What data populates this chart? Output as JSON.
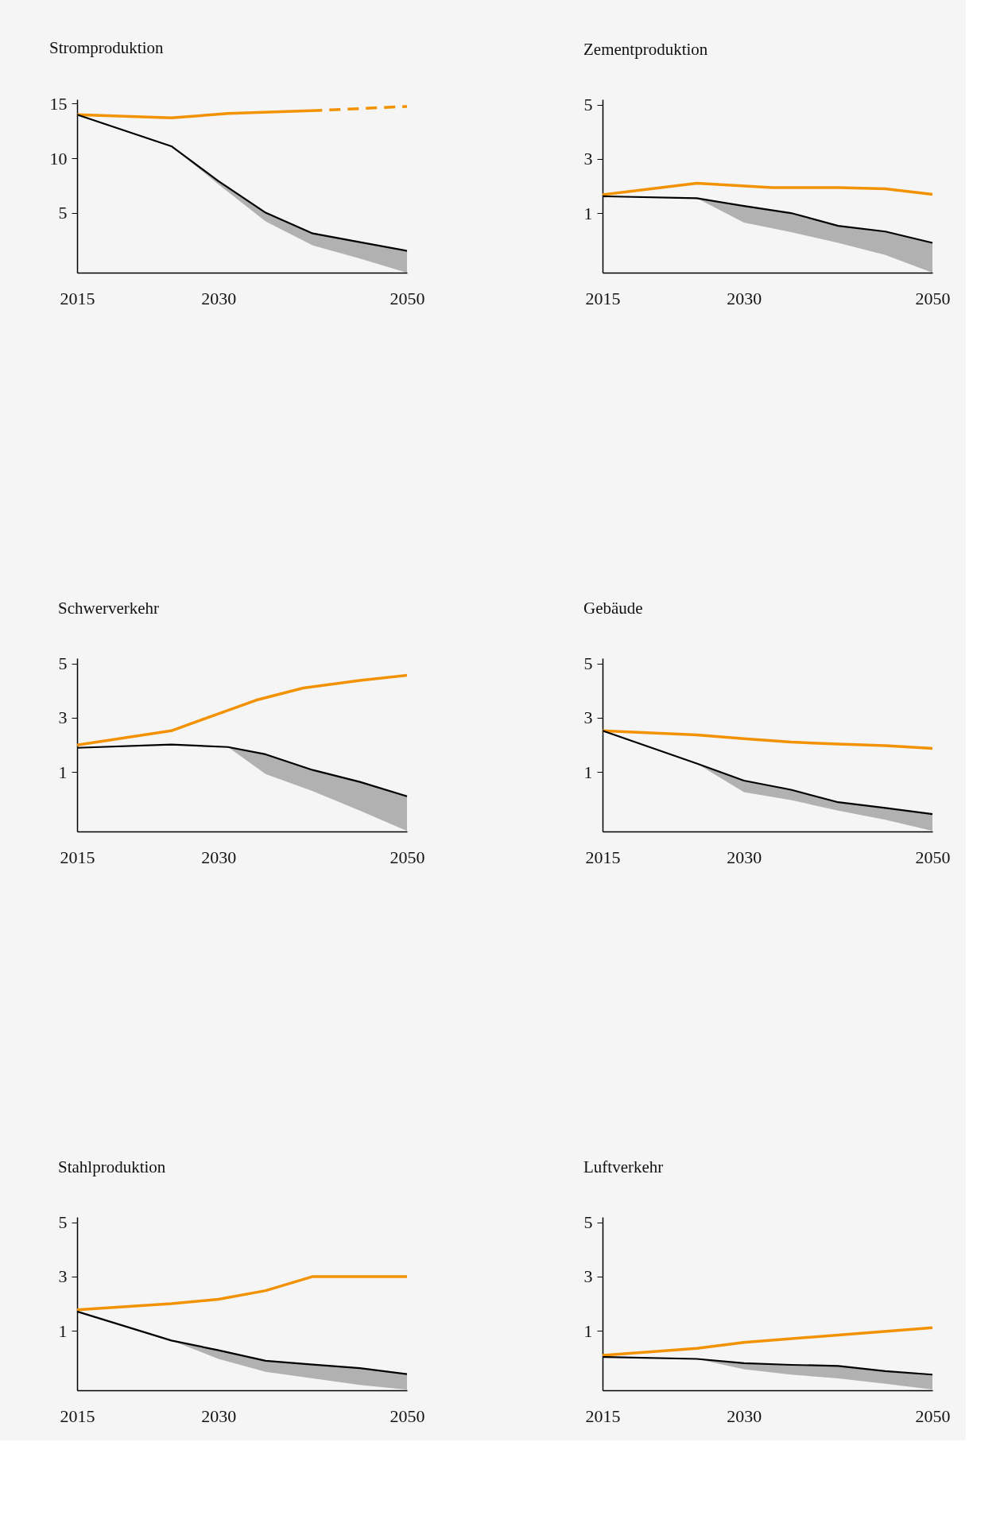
{
  "chart_data": [
    {
      "type": "line",
      "title": "Stromproduktion",
      "xlim": [
        2015,
        2050
      ],
      "xticks": [
        2015,
        2030,
        2050
      ],
      "ylim": [
        -0.5,
        15.4
      ],
      "yticks": [
        5,
        10,
        15
      ],
      "grid": false,
      "line_style": "solid",
      "series": [
        {
          "color": "#f39200",
          "x": [
            2015,
            2025,
            2031,
            2041
          ],
          "values": [
            14.0,
            13.7,
            14.1,
            14.4
          ]
        },
        {
          "color": "#f39200",
          "line_style": "dashed",
          "x": [
            2041,
            2050
          ],
          "values": [
            14.4,
            14.75
          ]
        },
        {
          "color": "#000000",
          "x": [
            2015,
            2025,
            2030,
            2035,
            2040,
            2045,
            2050
          ],
          "values": [
            14.0,
            11.1,
            7.9,
            5.0,
            3.1,
            2.3,
            1.5
          ],
          "lower": [
            null,
            11.1,
            7.6,
            4.2,
            2.0,
            0.8,
            -0.5
          ],
          "upper": [
            null,
            11.1,
            7.9,
            5.0,
            3.1,
            2.3,
            1.5
          ]
        }
      ]
    },
    {
      "type": "line",
      "title": "Zementproduktion",
      "xlim": [
        2015,
        2050
      ],
      "xticks": [
        2015,
        2030,
        2050
      ],
      "ylim": [
        -1.2,
        5.2
      ],
      "yticks": [
        1,
        3,
        5
      ],
      "grid": false,
      "line_style": "solid",
      "series": [
        {
          "color": "#f39200",
          "x": [
            2015,
            2025,
            2033,
            2040,
            2045,
            2050
          ],
          "values": [
            1.68,
            2.1,
            1.94,
            1.94,
            1.9,
            1.69
          ]
        },
        {
          "color": "#000000",
          "x": [
            2015,
            2025,
            2030,
            2035,
            2040,
            2045,
            2050
          ],
          "values": [
            1.62,
            1.55,
            1.26,
            1.0,
            0.53,
            0.32,
            -0.1
          ],
          "lower": [
            null,
            1.55,
            0.65,
            0.3,
            -0.1,
            -0.55,
            -1.2
          ],
          "upper": [
            null,
            1.55,
            1.26,
            1.0,
            0.53,
            0.32,
            -0.1
          ]
        }
      ]
    },
    {
      "type": "line",
      "title": "Schwerverkehr",
      "xlim": [
        2015,
        2050
      ],
      "xticks": [
        2015,
        2030,
        2050
      ],
      "ylim": [
        -1.2,
        5.2
      ],
      "yticks": [
        1,
        3,
        5
      ],
      "grid": false,
      "line_style": "solid",
      "series": [
        {
          "color": "#f39200",
          "x": [
            2015,
            2025,
            2034,
            2039,
            2045,
            2050
          ],
          "values": [
            1.99,
            2.52,
            3.65,
            4.1,
            4.38,
            4.57
          ]
        },
        {
          "color": "#000000",
          "x": [
            2015,
            2025,
            2031,
            2035,
            2040,
            2045,
            2050
          ],
          "values": [
            1.89,
            2.01,
            1.92,
            1.65,
            1.07,
            0.63,
            0.1
          ],
          "lower": [
            null,
            null,
            1.92,
            0.92,
            0.29,
            -0.43,
            -1.18
          ],
          "upper": [
            null,
            null,
            1.92,
            1.65,
            1.07,
            0.63,
            0.1
          ]
        }
      ]
    },
    {
      "type": "line",
      "title": "Gebäude",
      "xlim": [
        2015,
        2050
      ],
      "xticks": [
        2015,
        2030,
        2050
      ],
      "ylim": [
        -1.2,
        5.2
      ],
      "yticks": [
        1,
        3,
        5
      ],
      "grid": false,
      "line_style": "solid",
      "series": [
        {
          "color": "#f39200",
          "x": [
            2015,
            2025,
            2030,
            2035,
            2040,
            2045,
            2050
          ],
          "values": [
            2.52,
            2.37,
            2.23,
            2.1,
            2.03,
            1.97,
            1.87
          ]
        },
        {
          "color": "#000000",
          "x": [
            2015,
            2025,
            2030,
            2035,
            2040,
            2045,
            2050
          ],
          "values": [
            2.52,
            1.31,
            0.68,
            0.34,
            -0.12,
            -0.33,
            -0.56
          ],
          "lower": [
            null,
            1.31,
            0.25,
            -0.04,
            -0.43,
            -0.77,
            -1.18
          ],
          "upper": [
            null,
            1.31,
            0.68,
            0.34,
            -0.12,
            -0.33,
            -0.56
          ]
        }
      ]
    },
    {
      "type": "line",
      "title": "Stahlproduktion",
      "xlim": [
        2015,
        2050
      ],
      "xticks": [
        2015,
        2030,
        2050
      ],
      "ylim": [
        -1.2,
        5.2
      ],
      "yticks": [
        1,
        3,
        5
      ],
      "grid": false,
      "line_style": "solid",
      "series": [
        {
          "color": "#f39200",
          "x": [
            2015,
            2025,
            2030,
            2035,
            2040,
            2050
          ],
          "values": [
            1.77,
            2.0,
            2.16,
            2.48,
            3.0,
            3.0
          ]
        },
        {
          "color": "#000000",
          "x": [
            2015,
            2025,
            2030,
            2035,
            2040,
            2045,
            2050
          ],
          "values": [
            1.71,
            0.64,
            0.28,
            -0.11,
            -0.25,
            -0.38,
            -0.6
          ],
          "lower": [
            null,
            0.64,
            -0.04,
            -0.52,
            -0.76,
            -1.0,
            -1.18
          ],
          "upper": [
            null,
            0.64,
            0.28,
            -0.11,
            -0.25,
            -0.38,
            -0.6
          ]
        }
      ]
    },
    {
      "type": "line",
      "title": "Luftverkehr",
      "xlim": [
        2015,
        2050
      ],
      "xticks": [
        2015,
        2030,
        2050
      ],
      "ylim": [
        -1.2,
        5.2
      ],
      "yticks": [
        1,
        3,
        5
      ],
      "grid": false,
      "line_style": "solid",
      "series": [
        {
          "color": "#f39200",
          "x": [
            2015,
            2025,
            2030,
            2040,
            2050
          ],
          "values": [
            0.09,
            0.35,
            0.57,
            0.84,
            1.11
          ]
        },
        {
          "color": "#000000",
          "x": [
            2015,
            2025,
            2030,
            2035,
            2040,
            2045,
            2050
          ],
          "values": [
            0.03,
            -0.04,
            -0.2,
            -0.26,
            -0.3,
            -0.49,
            -0.62
          ],
          "lower": [
            null,
            -0.04,
            -0.42,
            -0.62,
            -0.76,
            -0.96,
            -1.17
          ],
          "upper": [
            null,
            -0.04,
            -0.2,
            -0.26,
            -0.3,
            -0.49,
            -0.62
          ]
        }
      ]
    }
  ]
}
